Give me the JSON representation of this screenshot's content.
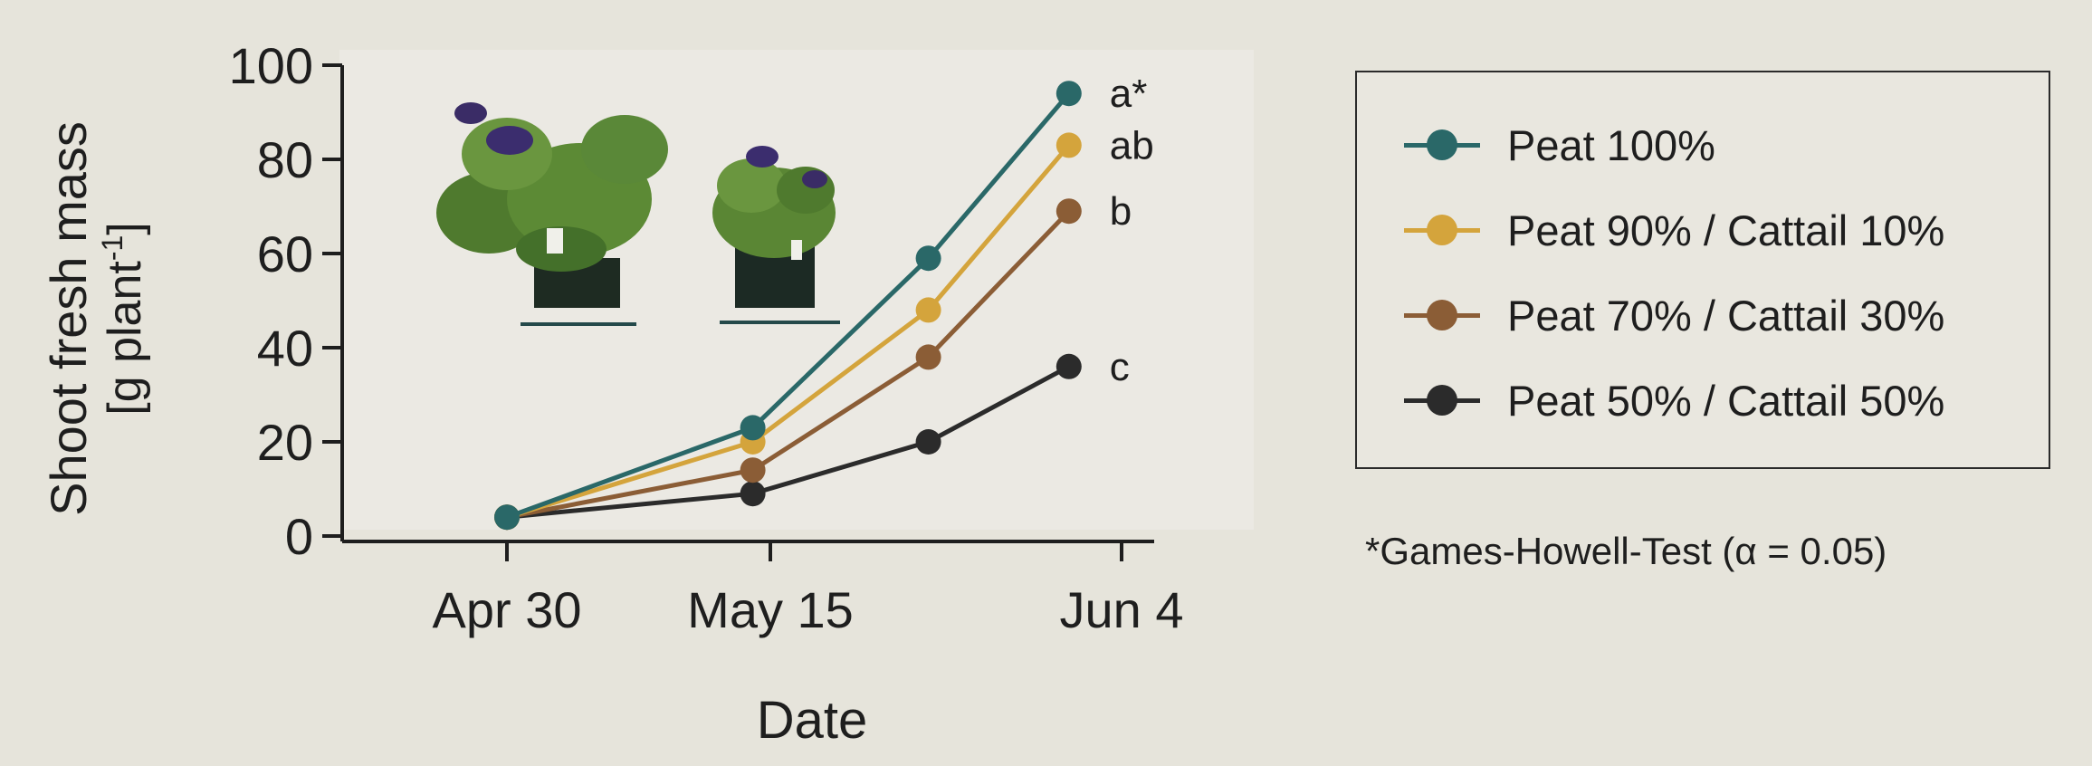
{
  "chart_data": {
    "type": "line",
    "xlabel": "Date",
    "ylabel_line1": "Shoot fresh mass",
    "ylabel_line2": "[g plant",
    "ylabel_exp": "-1",
    "ylabel_close": "]",
    "ylim": [
      0,
      100
    ],
    "yticks": [
      0,
      20,
      40,
      60,
      80,
      100
    ],
    "xticks": [
      {
        "label": "Apr 30",
        "value": 0
      },
      {
        "label": "May 15",
        "value": 15
      },
      {
        "label": "Jun 4",
        "value": 35
      }
    ],
    "x": [
      0,
      14,
      24,
      32
    ],
    "series": [
      {
        "name": "Peat 100%",
        "color": "#2a6868",
        "values": [
          4,
          23,
          59,
          94
        ],
        "sig": "a*"
      },
      {
        "name": "Peat 90% / Cattail 10%",
        "color": "#d4a43c",
        "values": [
          4,
          20,
          48,
          83
        ],
        "sig": "ab"
      },
      {
        "name": "Peat 70% / Cattail 30%",
        "color": "#8b5d36",
        "values": [
          4,
          14,
          38,
          69
        ],
        "sig": "b"
      },
      {
        "name": "Peat 50% / Cattail 50%",
        "color": "#2b2b2b",
        "values": [
          4,
          9,
          20,
          36
        ],
        "sig": "c"
      }
    ],
    "legend_position": "right",
    "grid": false,
    "footnote": "*Games-Howell-Test (α = 0.05)"
  }
}
